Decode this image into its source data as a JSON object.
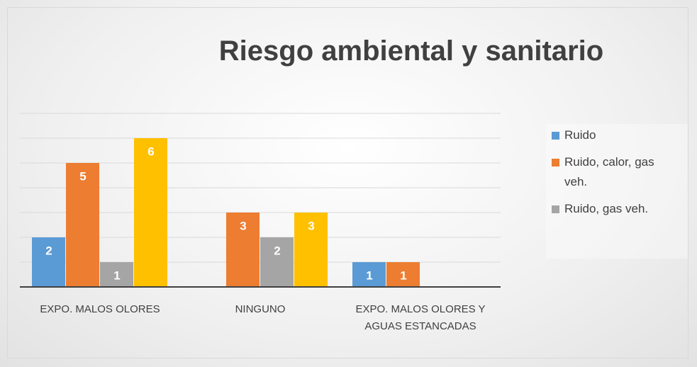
{
  "chart_data": {
    "type": "bar",
    "title": "Riesgo ambiental y sanitario",
    "categories": [
      "EXPO. MALOS OLORES",
      "NINGUNO",
      "EXPO. MALOS OLORES Y AGUAS ESTANCADAS"
    ],
    "series": [
      {
        "name": "Ruido",
        "color": "#5b9bd5",
        "values": [
          2,
          null,
          1
        ]
      },
      {
        "name": "Ruido, calor, gas veh.",
        "color": "#ed7d31",
        "values": [
          5,
          3,
          1
        ]
      },
      {
        "name": "Ruido, gas veh.",
        "color": "#a5a5a5",
        "values": [
          1,
          2,
          null
        ]
      },
      {
        "color": "#ffc000",
        "values": [
          6,
          3,
          null
        ]
      }
    ],
    "ylim": [
      0,
      7
    ],
    "yticks": [
      0,
      1,
      2,
      3,
      4,
      5,
      6,
      7
    ],
    "grid": true
  }
}
